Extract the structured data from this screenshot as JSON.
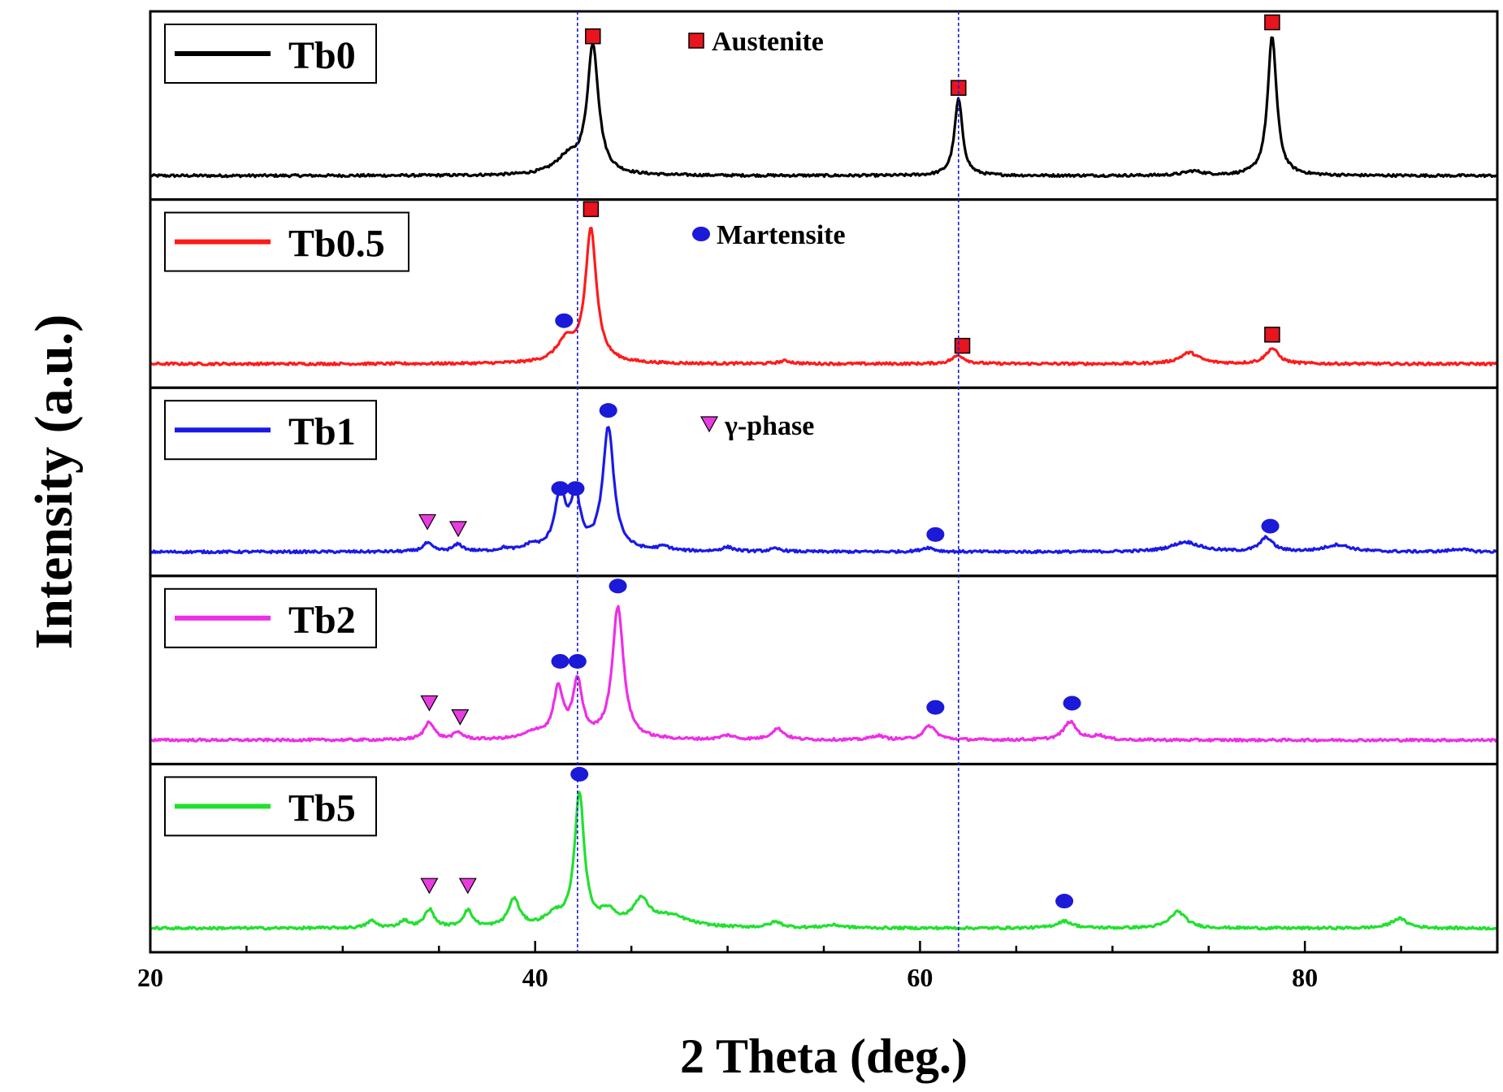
{
  "chart_data": {
    "type": "line",
    "title": "",
    "xlabel": "2 Theta (deg.)",
    "ylabel": "Intensity (a.u.)",
    "xlim": [
      20,
      90
    ],
    "x_ticks": [
      "20",
      "40",
      "60",
      "80"
    ],
    "reference_lines_x": [
      42.2,
      62.0
    ],
    "phase_legend": [
      {
        "label": "Austenite",
        "marker": "square",
        "color": "#e8141e"
      },
      {
        "label": "Martensite",
        "marker": "circle",
        "color": "#1a1ad8"
      },
      {
        "label": "γ-phase",
        "marker": "triangle",
        "color": "#e83ce0"
      }
    ],
    "series": [
      {
        "name": "Tb0",
        "color": "#000000",
        "baseline": 0.08,
        "peaks": [
          [
            41.7,
            0.12,
            0.8
          ],
          [
            43.0,
            0.92,
            0.35
          ],
          [
            62.0,
            0.55,
            0.25
          ],
          [
            74.2,
            0.03,
            0.6
          ],
          [
            78.3,
            1.0,
            0.28
          ]
        ],
        "markers": [
          {
            "x": 43.0,
            "y": 1.02,
            "type": "square"
          },
          {
            "x": 62.0,
            "y": 0.65,
            "type": "square"
          },
          {
            "x": 78.3,
            "y": 1.12,
            "type": "square"
          }
        ]
      },
      {
        "name": "Tb0.5",
        "color": "#ff1a1a",
        "baseline": 0.08,
        "peaks": [
          [
            41.6,
            0.15,
            0.6
          ],
          [
            42.9,
            0.95,
            0.35
          ],
          [
            53.0,
            0.02,
            0.4
          ],
          [
            62.0,
            0.06,
            0.4
          ],
          [
            74.0,
            0.08,
            0.6
          ],
          [
            78.3,
            0.11,
            0.4
          ]
        ],
        "markers": [
          {
            "x": 42.9,
            "y": 1.13,
            "type": "square"
          },
          {
            "x": 41.5,
            "y": 0.33,
            "type": "circle"
          },
          {
            "x": 62.2,
            "y": 0.15,
            "type": "square"
          },
          {
            "x": 78.3,
            "y": 0.23,
            "type": "square"
          }
        ]
      },
      {
        "name": "Tb1",
        "color": "#1a1ae8",
        "baseline": 0.06,
        "peaks": [
          [
            34.4,
            0.06,
            0.3
          ],
          [
            36.0,
            0.05,
            0.3
          ],
          [
            38.4,
            0.02,
            0.3
          ],
          [
            39.8,
            0.04,
            0.4
          ],
          [
            41.3,
            0.4,
            0.35
          ],
          [
            42.1,
            0.36,
            0.3
          ],
          [
            43.8,
            0.88,
            0.35
          ],
          [
            46.7,
            0.03,
            0.4
          ],
          [
            50.0,
            0.03,
            0.4
          ],
          [
            52.5,
            0.02,
            0.4
          ],
          [
            60.4,
            0.03,
            0.4
          ],
          [
            73.8,
            0.07,
            0.9
          ],
          [
            78.0,
            0.1,
            0.4
          ],
          [
            81.7,
            0.05,
            0.8
          ],
          [
            88.0,
            0.02,
            0.5
          ]
        ],
        "markers": [
          {
            "x": 34.4,
            "y": 0.23,
            "type": "triangle"
          },
          {
            "x": 36.0,
            "y": 0.18,
            "type": "triangle"
          },
          {
            "x": 41.3,
            "y": 0.47,
            "type": "circle"
          },
          {
            "x": 42.1,
            "y": 0.47,
            "type": "circle"
          },
          {
            "x": 43.8,
            "y": 1.03,
            "type": "circle"
          },
          {
            "x": 60.8,
            "y": 0.14,
            "type": "circle"
          },
          {
            "x": 78.2,
            "y": 0.2,
            "type": "circle"
          }
        ]
      },
      {
        "name": "Tb2",
        "color": "#ee2ee6",
        "baseline": 0.06,
        "peaks": [
          [
            34.5,
            0.13,
            0.3
          ],
          [
            36.0,
            0.05,
            0.3
          ],
          [
            40.0,
            0.05,
            0.6
          ],
          [
            41.2,
            0.35,
            0.3
          ],
          [
            42.2,
            0.4,
            0.3
          ],
          [
            44.3,
            0.95,
            0.35
          ],
          [
            50.0,
            0.03,
            0.4
          ],
          [
            52.6,
            0.08,
            0.4
          ],
          [
            57.8,
            0.03,
            0.4
          ],
          [
            60.5,
            0.1,
            0.4
          ],
          [
            67.8,
            0.13,
            0.4
          ],
          [
            69.3,
            0.03,
            0.4
          ]
        ],
        "markers": [
          {
            "x": 34.5,
            "y": 0.28,
            "type": "triangle"
          },
          {
            "x": 36.1,
            "y": 0.18,
            "type": "triangle"
          },
          {
            "x": 41.3,
            "y": 0.58,
            "type": "circle"
          },
          {
            "x": 42.2,
            "y": 0.58,
            "type": "circle"
          },
          {
            "x": 44.3,
            "y": 1.12,
            "type": "circle"
          },
          {
            "x": 60.8,
            "y": 0.25,
            "type": "circle"
          },
          {
            "x": 67.9,
            "y": 0.28,
            "type": "circle"
          }
        ]
      },
      {
        "name": "Tb5",
        "color": "#22e030",
        "baseline": 0.06,
        "peaks": [
          [
            31.5,
            0.05,
            0.3
          ],
          [
            33.2,
            0.05,
            0.3
          ],
          [
            34.5,
            0.13,
            0.3
          ],
          [
            36.5,
            0.12,
            0.3
          ],
          [
            38.9,
            0.2,
            0.35
          ],
          [
            41.0,
            0.08,
            0.6
          ],
          [
            42.3,
            0.95,
            0.3
          ],
          [
            43.8,
            0.1,
            0.5
          ],
          [
            45.5,
            0.18,
            0.5
          ],
          [
            47.0,
            0.08,
            1.2
          ],
          [
            52.5,
            0.04,
            0.4
          ],
          [
            55.5,
            0.02,
            0.6
          ],
          [
            67.5,
            0.05,
            0.5
          ],
          [
            73.4,
            0.12,
            0.5
          ],
          [
            84.9,
            0.07,
            0.5
          ]
        ],
        "markers": [
          {
            "x": 34.5,
            "y": 0.32,
            "type": "triangle"
          },
          {
            "x": 36.5,
            "y": 0.32,
            "type": "triangle"
          },
          {
            "x": 42.3,
            "y": 1.12,
            "type": "circle"
          },
          {
            "x": 67.5,
            "y": 0.21,
            "type": "circle"
          }
        ]
      }
    ]
  }
}
